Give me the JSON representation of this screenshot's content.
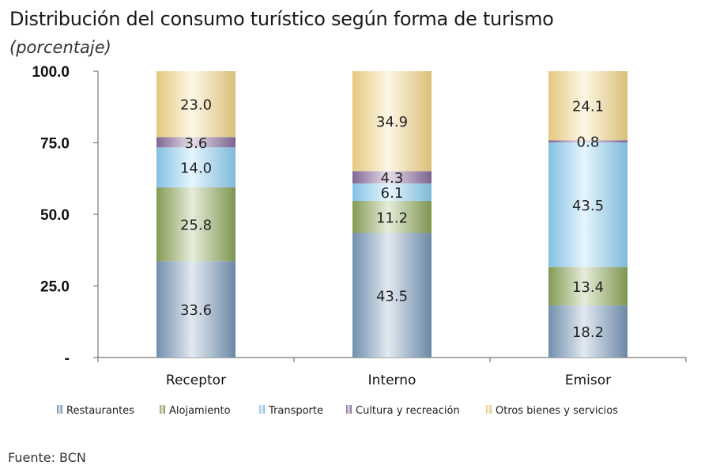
{
  "header": {
    "title": "Distribución del consumo turístico según forma de turismo",
    "subtitle": "(porcentaje)"
  },
  "footer": {
    "source": "Fuente: BCN"
  },
  "chart_data": {
    "type": "bar",
    "stacked": true,
    "categories": [
      "Receptor",
      "Interno",
      "Emisor"
    ],
    "series": [
      {
        "name": "Restaurantes",
        "values": [
          33.6,
          43.5,
          18.2
        ],
        "color": "#7a9bbd"
      },
      {
        "name": "Alojamiento",
        "values": [
          25.8,
          11.2,
          13.4
        ],
        "color": "#8fa95a"
      },
      {
        "name": "Transporte",
        "values": [
          14.0,
          6.1,
          43.5
        ],
        "color": "#8fd2f8"
      },
      {
        "name": "Cultura y recreación",
        "values": [
          3.6,
          4.3,
          0.8
        ],
        "color": "#8c6fa0"
      },
      {
        "name": "Otros bienes y servicios",
        "values": [
          23.0,
          34.9,
          24.1
        ],
        "color": "#f8d98a"
      }
    ],
    "y_ticks": [
      "-",
      "25.0",
      "50.0",
      "75.0",
      "100.0"
    ],
    "y_tick_values": [
      0,
      25,
      50,
      75,
      100
    ],
    "ylim": [
      0,
      100
    ],
    "legend_position": "bottom",
    "grid": false
  }
}
